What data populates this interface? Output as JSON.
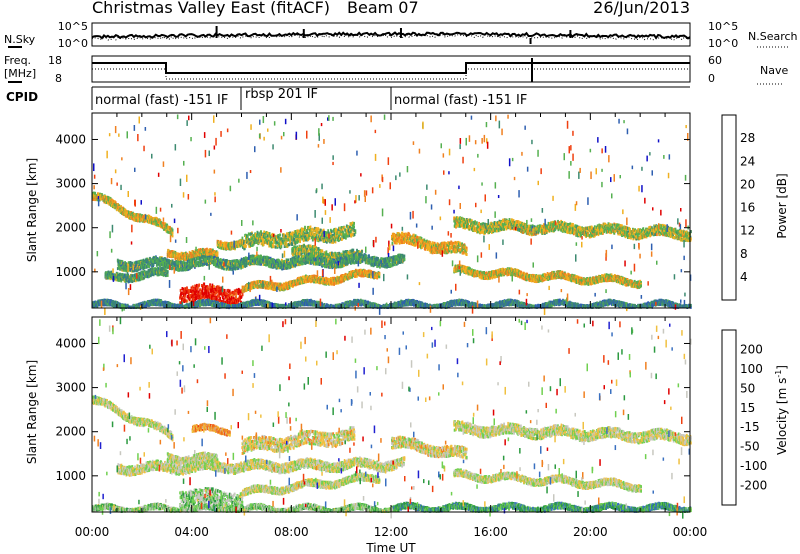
{
  "header": {
    "radar": "Christmas Valley East (fitACF)",
    "beam": "Beam 07",
    "date": "26/Jun/2013"
  },
  "noise_panel": {
    "left_label": "N.Sky",
    "left_ticks": [
      "10^5",
      "10^0"
    ],
    "right_ticks": [
      "10^5",
      "10^0"
    ],
    "right_label": "N.Search"
  },
  "freq_panel": {
    "left_label_1": "Freq.",
    "left_label_2": "[MHz]",
    "left_ticks": [
      "18",
      "8"
    ],
    "right_ticks": [
      "60",
      "0"
    ],
    "right_label": "Nave"
  },
  "cpid_panel": {
    "label": "CPID",
    "segments": [
      {
        "start_hour": 0,
        "end_hour": 6,
        "text": "normal (fast) -151 IF"
      },
      {
        "start_hour": 6,
        "end_hour": 12,
        "text": "rbsp 201 IF"
      },
      {
        "start_hour": 12,
        "end_hour": 24,
        "text": "normal (fast) -151 IF"
      }
    ]
  },
  "chart_data": [
    {
      "type": "heatmap",
      "panel": "power",
      "ylabel": "Slant Range [km]",
      "ylim": [
        180,
        4600
      ],
      "yticks": [
        1000,
        2000,
        3000,
        4000
      ],
      "xlim_hours": [
        0,
        24
      ],
      "colorbar": {
        "label": "Power [dB]",
        "ticks": [
          "4",
          "8",
          "12",
          "16",
          "20",
          "24",
          "28"
        ],
        "colors": [
          "#1010c8",
          "#2e5fb0",
          "#3d8a70",
          "#55b050",
          "#f0b020",
          "#f08020",
          "#f04010",
          "#e00000"
        ]
      },
      "echo_bands": [
        {
          "start": 0.0,
          "end": 3.2,
          "range_start": 2750,
          "range_end": 1950,
          "width": 150,
          "level": 0.55
        },
        {
          "start": 3.0,
          "end": 5.0,
          "range_start": 1450,
          "range_end": 1400,
          "width": 160,
          "level": 0.6
        },
        {
          "start": 5.0,
          "end": 6.0,
          "range_start": 1650,
          "range_end": 1700,
          "width": 150,
          "level": 0.55
        },
        {
          "start": 6.0,
          "end": 10.5,
          "range_start": 1700,
          "range_end": 1950,
          "width": 300,
          "level": 0.45
        },
        {
          "start": 8.0,
          "end": 10.8,
          "range_start": 1500,
          "range_end": 1350,
          "width": 220,
          "level": 0.45
        },
        {
          "start": 1.0,
          "end": 12.5,
          "range_start": 1200,
          "range_end": 1300,
          "width": 200,
          "level": 0.35
        },
        {
          "start": 0.5,
          "end": 3.0,
          "range_start": 900,
          "range_end": 1000,
          "width": 160,
          "level": 0.35
        },
        {
          "start": 3.5,
          "end": 6.0,
          "range_start": 550,
          "range_end": 500,
          "width": 350,
          "level": 0.95
        },
        {
          "start": 6.0,
          "end": 11.5,
          "range_start": 650,
          "range_end": 1000,
          "width": 140,
          "level": 0.6
        },
        {
          "start": 12.0,
          "end": 15.0,
          "range_start": 1800,
          "range_end": 1500,
          "width": 230,
          "level": 0.6
        },
        {
          "start": 14.5,
          "end": 24.0,
          "range_start": 2100,
          "range_end": 1900,
          "width": 220,
          "level": 0.5
        },
        {
          "start": 14.5,
          "end": 22.0,
          "range_start": 1050,
          "range_end": 800,
          "width": 140,
          "level": 0.55
        },
        {
          "start": 0.0,
          "end": 24.0,
          "range_start": 280,
          "range_end": 280,
          "width": 110,
          "level": 0.25
        }
      ]
    },
    {
      "type": "heatmap",
      "panel": "velocity",
      "ylabel": "Slant Range [km]",
      "ylim": [
        180,
        4600
      ],
      "yticks": [
        1000,
        2000,
        3000,
        4000
      ],
      "xlim_hours": [
        0,
        24
      ],
      "xticks": [
        "00:00",
        "04:00",
        "08:00",
        "12:00",
        "16:00",
        "20:00",
        "00:00"
      ],
      "xlabel": "Time UT",
      "colorbar": {
        "label": "Velocity [m s",
        "label_sup": "-1",
        "label_end": "]",
        "ticks": [
          "200",
          "100",
          "50",
          "15",
          "-15",
          "-50",
          "-100",
          "-200"
        ],
        "colors": [
          "#2020d0",
          "#3a70c0",
          "#2c9a40",
          "#70d050",
          "#c8c8c0",
          "#f0c040",
          "#f08020",
          "#f04010",
          "#e00000"
        ]
      },
      "echo_bands": [
        {
          "start": 0.0,
          "end": 3.2,
          "range_start": 2750,
          "range_end": 1950,
          "width": 150,
          "level": 0.5
        },
        {
          "start": 3.0,
          "end": 5.0,
          "range_start": 1450,
          "range_end": 1400,
          "width": 160,
          "level": 0.5
        },
        {
          "start": 4.0,
          "end": 5.5,
          "range_start": 2100,
          "range_end": 2050,
          "width": 120,
          "level": 0.3
        },
        {
          "start": 6.0,
          "end": 10.5,
          "range_start": 1700,
          "range_end": 1950,
          "width": 300,
          "level": 0.45
        },
        {
          "start": 1.0,
          "end": 12.5,
          "range_start": 1200,
          "range_end": 1300,
          "width": 200,
          "level": 0.5
        },
        {
          "start": 3.5,
          "end": 6.0,
          "range_start": 550,
          "range_end": 500,
          "width": 350,
          "level": 0.6
        },
        {
          "start": 6.0,
          "end": 11.5,
          "range_start": 650,
          "range_end": 1000,
          "width": 140,
          "level": 0.5
        },
        {
          "start": 12.0,
          "end": 15.0,
          "range_start": 1800,
          "range_end": 1500,
          "width": 230,
          "level": 0.45
        },
        {
          "start": 14.5,
          "end": 24.0,
          "range_start": 2100,
          "range_end": 1900,
          "width": 220,
          "level": 0.5
        },
        {
          "start": 14.5,
          "end": 22.0,
          "range_start": 1050,
          "range_end": 800,
          "width": 140,
          "level": 0.5
        },
        {
          "start": 12.0,
          "end": 24.0,
          "range_start": 300,
          "range_end": 300,
          "width": 120,
          "level": 0.75
        },
        {
          "start": 0.0,
          "end": 12.0,
          "range_start": 280,
          "range_end": 280,
          "width": 110,
          "level": 0.6
        }
      ]
    }
  ]
}
